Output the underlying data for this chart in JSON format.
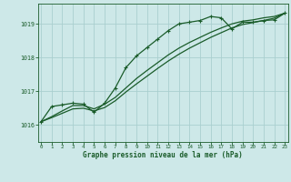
{
  "title": "Graphe pression niveau de la mer (hPa)",
  "bg_color": "#cde8e8",
  "grid_color": "#aacfcf",
  "line_color": "#1a5c2a",
  "x_values": [
    0,
    1,
    2,
    3,
    4,
    5,
    6,
    7,
    8,
    9,
    10,
    11,
    12,
    13,
    14,
    15,
    16,
    17,
    18,
    19,
    20,
    21,
    22,
    23
  ],
  "y_main": [
    1016.1,
    1016.55,
    1016.6,
    1016.65,
    1016.62,
    1016.38,
    1016.65,
    1017.1,
    1017.7,
    1018.05,
    1018.3,
    1018.55,
    1018.8,
    1019.0,
    1019.05,
    1019.1,
    1019.22,
    1019.18,
    1018.85,
    1019.05,
    1019.05,
    1019.1,
    1019.12,
    1019.32
  ],
  "y_line1": [
    1016.1,
    1016.25,
    1016.42,
    1016.58,
    1016.58,
    1016.48,
    1016.62,
    1016.82,
    1017.1,
    1017.38,
    1017.62,
    1017.85,
    1018.08,
    1018.28,
    1018.45,
    1018.6,
    1018.75,
    1018.88,
    1019.0,
    1019.08,
    1019.12,
    1019.18,
    1019.22,
    1019.32
  ],
  "y_line2": [
    1016.1,
    1016.22,
    1016.35,
    1016.48,
    1016.5,
    1016.42,
    1016.52,
    1016.72,
    1016.98,
    1017.22,
    1017.45,
    1017.68,
    1017.9,
    1018.1,
    1018.28,
    1018.44,
    1018.6,
    1018.74,
    1018.88,
    1018.98,
    1019.04,
    1019.1,
    1019.17,
    1019.32
  ],
  "ylim": [
    1015.5,
    1019.6
  ],
  "yticks": [
    1016,
    1017,
    1018,
    1019
  ],
  "xticks": [
    0,
    1,
    2,
    3,
    4,
    5,
    6,
    7,
    8,
    9,
    10,
    11,
    12,
    13,
    14,
    15,
    16,
    17,
    18,
    19,
    20,
    21,
    22,
    23
  ]
}
